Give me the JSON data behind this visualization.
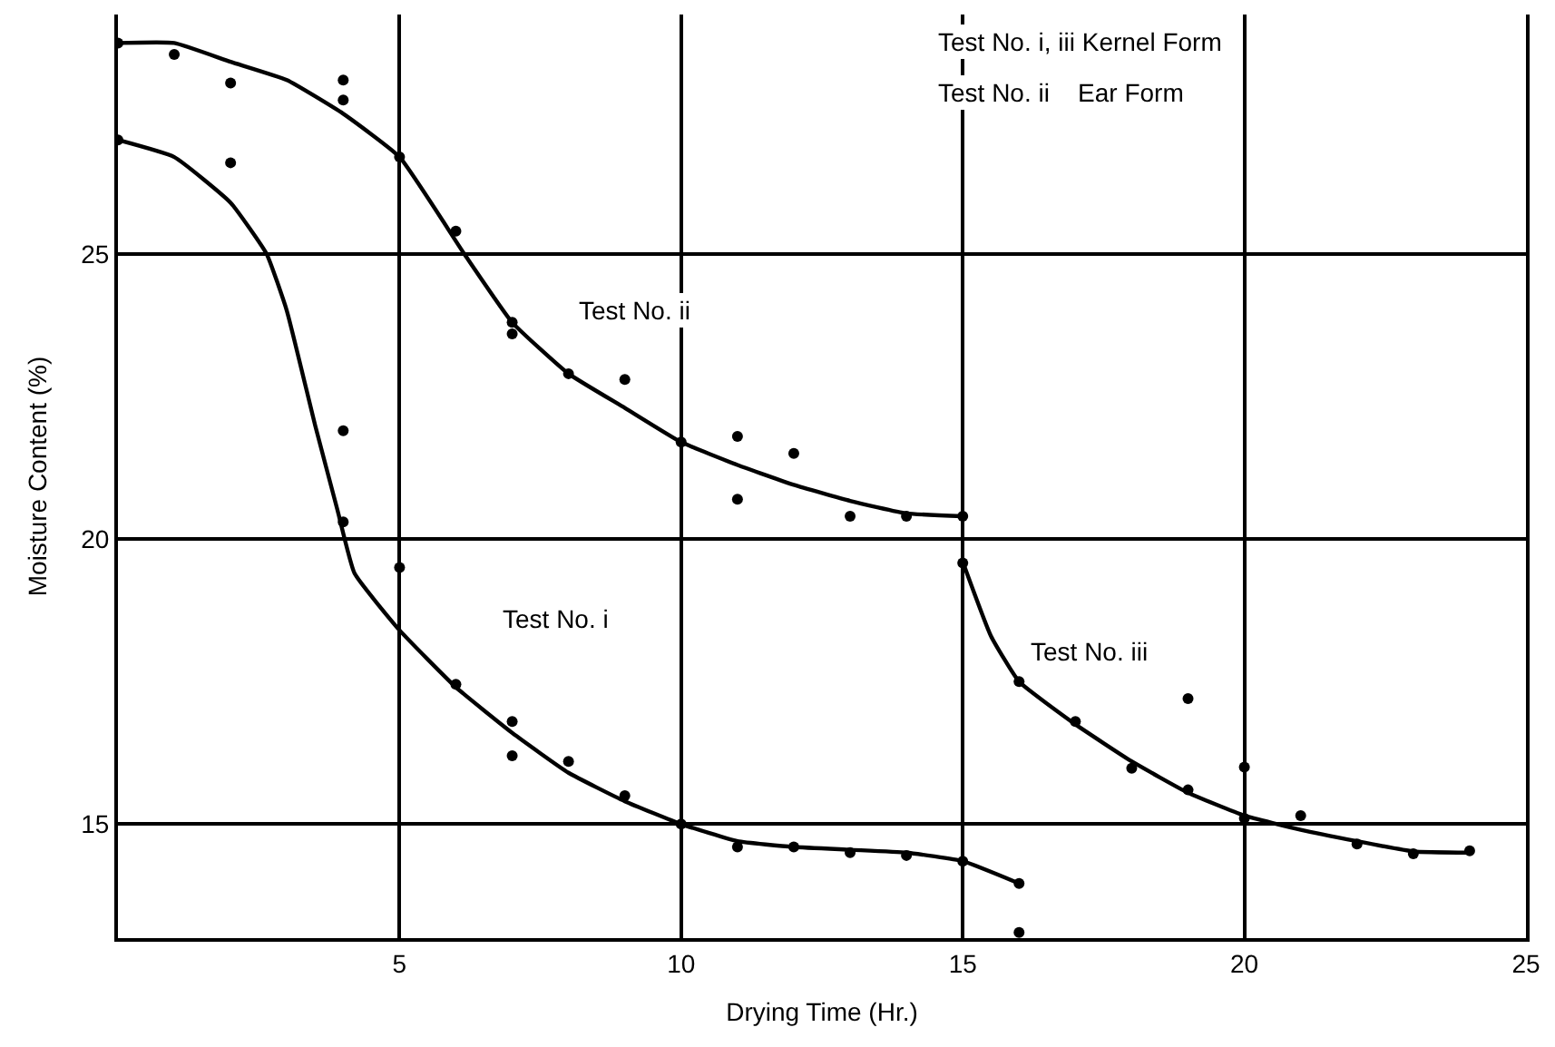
{
  "chart_data": {
    "type": "scatter",
    "xlabel": "Drying Time (Hr.)",
    "ylabel": "Moisture Content (%)",
    "xlim": [
      0,
      25
    ],
    "ylim": [
      13,
      29.2
    ],
    "xticks": [
      5,
      10,
      15,
      20,
      25
    ],
    "yticks": [
      15,
      20,
      25
    ],
    "grid": true,
    "series": [
      {
        "marker": "circle",
        "color": "#000000",
        "x": [
          0,
          1,
          2,
          4,
          4,
          5,
          6,
          7,
          7,
          8,
          9,
          10,
          11,
          11,
          12,
          13,
          14,
          15
        ],
        "values": [
          28.7,
          28.5,
          28.0,
          28.05,
          27.7,
          26.7,
          25.4,
          23.8,
          23.6,
          22.9,
          22.8,
          21.7,
          21.8,
          20.7,
          21.5,
          20.4,
          20.4,
          20.4
        ]
      },
      {
        "type": "line",
        "marker": "none",
        "line_style": "solid",
        "color": "#000000",
        "x": [
          0,
          1,
          2,
          3,
          4,
          5,
          6.15,
          7,
          8,
          9,
          10,
          11,
          12,
          13,
          14,
          15
        ],
        "values": [
          28.7,
          28.7,
          28.37,
          28.05,
          27.46,
          26.7,
          25.0,
          23.8,
          22.9,
          22.3,
          21.7,
          21.3,
          20.95,
          20.67,
          20.45,
          20.4
        ]
      },
      {
        "marker": "circle",
        "color": "#000000",
        "x": [
          0,
          2,
          4,
          4,
          5,
          6,
          7,
          7,
          8,
          9,
          10,
          11,
          12,
          13,
          14,
          15,
          16,
          16
        ],
        "values": [
          27.0,
          26.6,
          21.9,
          20.3,
          19.5,
          17.45,
          16.8,
          16.2,
          16.1,
          15.5,
          15.0,
          14.6,
          14.6,
          14.5,
          14.45,
          14.35,
          13.96,
          13.1
        ]
      },
      {
        "type": "line",
        "marker": "none",
        "line_style": "solid",
        "color": "#000000",
        "x": [
          0,
          1,
          2,
          2.64,
          3,
          3.5,
          3.9,
          4.2,
          5,
          6,
          7,
          8,
          9,
          10,
          11,
          12,
          13,
          14,
          15,
          16
        ],
        "values": [
          27.0,
          26.7,
          25.9,
          25.0,
          24.0,
          22.0,
          20.5,
          19.4,
          18.4,
          17.4,
          16.6,
          15.9,
          15.4,
          15.0,
          14.7,
          14.6,
          14.55,
          14.5,
          14.35,
          13.96
        ]
      },
      {
        "marker": "circle",
        "color": "#000000",
        "x": [
          15,
          16,
          17,
          18,
          19,
          19,
          20,
          20,
          21,
          22,
          23,
          24
        ],
        "values": [
          19.58,
          17.5,
          16.8,
          15.98,
          17.2,
          15.6,
          16.0,
          15.1,
          15.15,
          14.65,
          14.48,
          14.53
        ]
      },
      {
        "type": "line",
        "marker": "none",
        "line_style": "solid",
        "color": "#000000",
        "x": [
          15,
          15.5,
          16,
          17,
          18,
          19,
          20,
          21,
          22,
          23,
          24
        ],
        "values": [
          19.6,
          18.3,
          17.5,
          16.75,
          16.1,
          15.55,
          15.15,
          14.9,
          14.7,
          14.52,
          14.5
        ]
      }
    ],
    "annotations": [
      "Test No. i, iii Kernel Form",
      "Test No. ii    Ear Form",
      "Test No. ii",
      "Test No. i",
      "Test No. iii"
    ]
  }
}
